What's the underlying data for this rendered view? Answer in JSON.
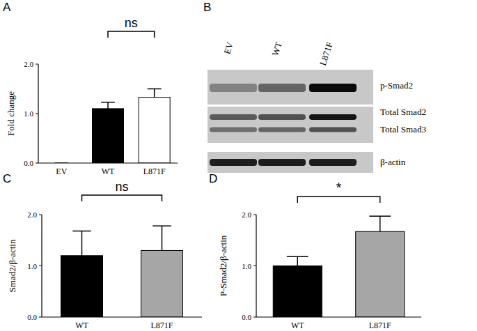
{
  "chart_data": [
    {
      "type": "bar",
      "title": "A",
      "y_label": "Fold change",
      "categories": [
        "EV",
        "WT",
        "L871F"
      ],
      "values": [
        0,
        1.1,
        1.33
      ],
      "errors": [
        0,
        0.13,
        0.17
      ],
      "colors": [
        "#000000",
        "#000000",
        "#ffffff"
      ],
      "ylim": [
        0,
        2
      ],
      "yticks": [
        {
          "value": 0,
          "label": "0.0"
        },
        {
          "value": 1,
          "label": "1.0"
        },
        {
          "value": 2,
          "label": "2.0"
        }
      ],
      "annotations": [
        {
          "text": "ns",
          "between": [
            "WT",
            "L871F"
          ]
        }
      ]
    },
    {
      "type": "bar",
      "title": "C",
      "y_label": "Smad2/β-actin",
      "categories": [
        "WT",
        "L871F"
      ],
      "values": [
        1.2,
        1.3
      ],
      "errors": [
        0.48,
        0.48
      ],
      "colors": [
        "#000000",
        "#a6a6a6"
      ],
      "ylim": [
        0,
        2
      ],
      "yticks": [
        {
          "value": 0,
          "label": "0.0"
        },
        {
          "value": 1,
          "label": "1.0"
        },
        {
          "value": 2,
          "label": "2.0"
        }
      ],
      "annotations": [
        {
          "text": "ns",
          "between": [
            "WT",
            "L871F"
          ]
        }
      ]
    },
    {
      "type": "bar",
      "title": "D",
      "y_label": "P-Smad2/β-actin",
      "categories": [
        "WT",
        "L871F"
      ],
      "values": [
        1.0,
        1.67
      ],
      "errors": [
        0.18,
        0.3
      ],
      "colors": [
        "#000000",
        "#a6a6a6"
      ],
      "ylim": [
        0,
        2
      ],
      "yticks": [
        {
          "value": 0,
          "label": "0.0"
        },
        {
          "value": 1,
          "label": "1.0"
        },
        {
          "value": 2,
          "label": "2.0"
        }
      ],
      "annotations": [
        {
          "text": "*",
          "between": [
            "WT",
            "L871F"
          ]
        }
      ]
    }
  ],
  "blot": {
    "title": "B",
    "lanes": [
      "EV",
      "WT",
      "L871F"
    ],
    "band_labels": [
      "p-Smad2",
      "Total Smad2",
      "Total Smad3",
      "β-actin"
    ]
  }
}
